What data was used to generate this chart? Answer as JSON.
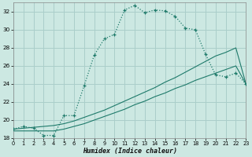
{
  "xlabel": "Humidex (Indice chaleur)",
  "bg_color": "#cce8e2",
  "grid_color": "#aaceca",
  "line_color": "#1e7a6a",
  "xlim": [
    0,
    23
  ],
  "ylim": [
    18,
    33
  ],
  "xticks": [
    0,
    1,
    2,
    3,
    4,
    5,
    6,
    7,
    8,
    9,
    10,
    11,
    12,
    13,
    14,
    15,
    16,
    17,
    18,
    19,
    20,
    21,
    22,
    23
  ],
  "yticks": [
    18,
    20,
    22,
    24,
    26,
    28,
    30,
    32
  ],
  "line1_x": [
    0,
    1,
    2,
    3,
    4,
    5,
    6,
    7,
    8,
    9,
    10,
    11,
    12,
    13,
    14,
    15,
    16,
    17,
    18,
    19,
    20,
    21,
    22,
    23
  ],
  "line1_y": [
    19.0,
    19.3,
    19.1,
    18.3,
    18.3,
    20.5,
    20.5,
    23.8,
    27.2,
    29.0,
    29.5,
    32.2,
    32.7,
    31.9,
    32.2,
    32.1,
    31.5,
    30.2,
    30.0,
    27.3,
    25.0,
    24.8,
    25.2,
    24.0
  ],
  "line2_x": [
    0,
    1,
    2,
    3,
    4,
    5,
    6,
    7,
    8,
    9,
    10,
    11,
    12,
    13,
    14,
    15,
    16,
    17,
    18,
    19,
    20,
    21,
    22,
    23
  ],
  "line2_y": [
    19.0,
    19.1,
    19.2,
    19.3,
    19.4,
    19.6,
    19.9,
    20.3,
    20.7,
    21.1,
    21.6,
    22.1,
    22.6,
    23.1,
    23.6,
    24.2,
    24.7,
    25.3,
    25.9,
    26.5,
    27.1,
    27.5,
    28.0,
    24.0
  ],
  "line3_x": [
    0,
    1,
    2,
    3,
    4,
    5,
    6,
    7,
    8,
    9,
    10,
    11,
    12,
    13,
    14,
    15,
    16,
    17,
    18,
    19,
    20,
    21,
    22,
    23
  ],
  "line3_y": [
    18.8,
    18.8,
    18.8,
    18.8,
    18.8,
    19.0,
    19.3,
    19.6,
    20.0,
    20.4,
    20.8,
    21.2,
    21.7,
    22.1,
    22.6,
    23.0,
    23.5,
    23.9,
    24.4,
    24.8,
    25.2,
    25.6,
    26.0,
    24.0
  ]
}
